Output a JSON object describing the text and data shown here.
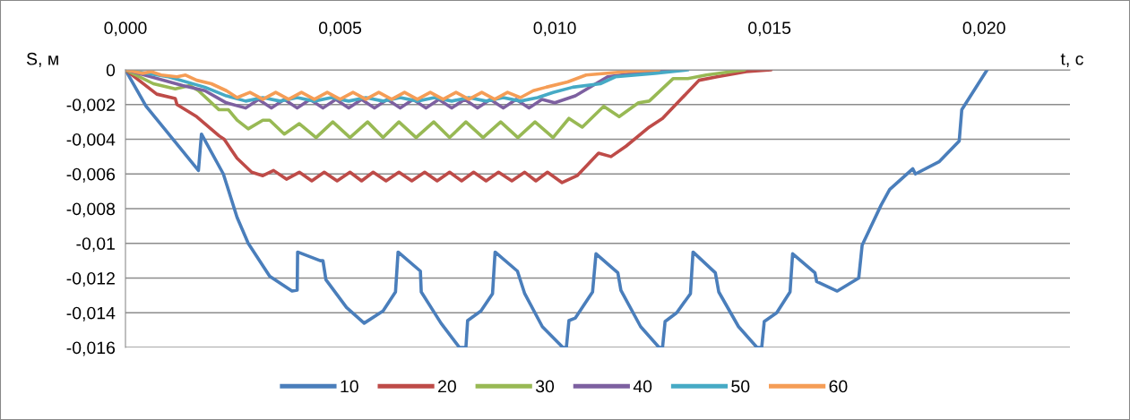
{
  "chart_data": {
    "type": "line",
    "xlabel": "t, c",
    "ylabel": "S, м",
    "xlim": [
      0,
      0.022
    ],
    "ylim": [
      -0.016,
      0
    ],
    "xticks": [
      {
        "value": 0,
        "label": "0,000"
      },
      {
        "value": 0.005,
        "label": "0,005"
      },
      {
        "value": 0.01,
        "label": "0,010"
      },
      {
        "value": 0.015,
        "label": "0,015"
      },
      {
        "value": 0.02,
        "label": "0,020"
      }
    ],
    "yticks": [
      {
        "value": 0,
        "label": "0"
      },
      {
        "value": -0.002,
        "label": "-0,002"
      },
      {
        "value": -0.004,
        "label": "-0,004"
      },
      {
        "value": -0.006,
        "label": "-0,006"
      },
      {
        "value": -0.008,
        "label": "-0,008"
      },
      {
        "value": -0.01,
        "label": "-0,01"
      },
      {
        "value": -0.012,
        "label": "-0,012"
      },
      {
        "value": -0.014,
        "label": "-0,014"
      },
      {
        "value": -0.016,
        "label": "-0,016"
      }
    ],
    "grid": "y",
    "legend": "bottom",
    "marker": "none",
    "line_style": "solid",
    "series": [
      {
        "name": "10",
        "color": "#4a7ebb",
        "x": [
          0,
          0.00048,
          0.00091,
          0.0017,
          0.00177,
          0.00228,
          0.0026,
          0.00286,
          0.00336,
          0.00388,
          0.004,
          0.00401,
          0.00454,
          0.0046,
          0.00467,
          0.00515,
          0.00556,
          0.006,
          0.00629,
          0.00635,
          0.00687,
          0.00689,
          0.00735,
          0.00778,
          0.00793,
          0.00797,
          0.00828,
          0.00855,
          0.00861,
          0.00913,
          0.0093,
          0.00971,
          0.01019,
          0.01027,
          0.01033,
          0.01048,
          0.01088,
          0.01096,
          0.01147,
          0.01154,
          0.012,
          0.01243,
          0.01251,
          0.01257,
          0.01284,
          0.01316,
          0.01322,
          0.01374,
          0.01382,
          0.01428,
          0.01471,
          0.01482,
          0.01488,
          0.01517,
          0.01548,
          0.01554,
          0.01606,
          0.0161,
          0.01658,
          0.01708,
          0.01716,
          0.0176,
          0.0178,
          0.01834,
          0.0184,
          0.01895,
          0.01942,
          0.01948,
          0.02007
        ],
        "values": [
          0,
          -0.0021,
          -0.0034,
          -0.0058,
          -0.0037,
          -0.006,
          -0.0085,
          -0.01,
          -0.0119,
          -0.01275,
          -0.0127,
          -0.0105,
          -0.011,
          -0.011,
          -0.0121,
          -0.0137,
          -0.0146,
          -0.0139,
          -0.0128,
          -0.0105,
          -0.0116,
          -0.0128,
          -0.0146,
          -0.016,
          -0.016,
          -0.01445,
          -0.0139,
          -0.0129,
          -0.0105,
          -0.0116,
          -0.0129,
          -0.0148,
          -0.016,
          -0.016,
          -0.01445,
          -0.0143,
          -0.0128,
          -0.0106,
          -0.0117,
          -0.0127,
          -0.0148,
          -0.016,
          -0.016,
          -0.0145,
          -0.014,
          -0.0129,
          -0.0105,
          -0.0117,
          -0.0128,
          -0.0148,
          -0.016,
          -0.016,
          -0.0145,
          -0.014,
          -0.0128,
          -0.0106,
          -0.0117,
          -0.0122,
          -0.01275,
          -0.012,
          -0.0101,
          -0.0078,
          -0.0069,
          -0.0057,
          -0.006,
          -0.0053,
          -0.0041,
          -0.0023,
          0
        ]
      },
      {
        "name": "20",
        "color": "#be4b48",
        "x": [
          0,
          0.00073,
          0.00116,
          0.0012,
          0.00166,
          0.00218,
          0.0023,
          0.0026,
          0.00294,
          0.0032,
          0.00345,
          0.00375,
          0.00405,
          0.00434,
          0.00463,
          0.00493,
          0.00523,
          0.0055,
          0.00577,
          0.00607,
          0.00637,
          0.00667,
          0.00697,
          0.00726,
          0.00755,
          0.00783,
          0.00811,
          0.0084,
          0.00869,
          0.009,
          0.0093,
          0.00956,
          0.00983,
          0.01017,
          0.01052,
          0.01102,
          0.01131,
          0.01166,
          0.0122,
          0.01251,
          0.01336,
          0.01378,
          0.01446,
          0.01504
        ],
        "values": [
          0,
          -0.0014,
          -0.00165,
          -0.002,
          -0.0027,
          -0.0038,
          -0.004,
          -0.0051,
          -0.0059,
          -0.0061,
          -0.0058,
          -0.0063,
          -0.0059,
          -0.0064,
          -0.0059,
          -0.0064,
          -0.0059,
          -0.0064,
          -0.0059,
          -0.0064,
          -0.0059,
          -0.0064,
          -0.0059,
          -0.0064,
          -0.0059,
          -0.0064,
          -0.0059,
          -0.0064,
          -0.0059,
          -0.0064,
          -0.0059,
          -0.0064,
          -0.0059,
          -0.0065,
          -0.0061,
          -0.0048,
          -0.005,
          -0.0044,
          -0.0033,
          -0.0028,
          -0.0006,
          -0.0004,
          -0.0001,
          0
        ]
      },
      {
        "name": "30",
        "color": "#98b954",
        "x": [
          0,
          0.00065,
          0.00116,
          0.0015,
          0.0017,
          0.00218,
          0.0024,
          0.0026,
          0.00286,
          0.0032,
          0.00336,
          0.0037,
          0.00405,
          0.00444,
          0.00483,
          0.00523,
          0.00564,
          0.006,
          0.00637,
          0.00677,
          0.00718,
          0.00755,
          0.00793,
          0.00833,
          0.00874,
          0.00914,
          0.00954,
          0.00996,
          0.01033,
          0.01064,
          0.01114,
          0.0115,
          0.01195,
          0.0122,
          0.01276,
          0.0131,
          0.01353,
          0.01442
        ],
        "values": [
          0,
          -0.0008,
          -0.0011,
          -0.0009,
          -0.0012,
          -0.0023,
          -0.0023,
          -0.0029,
          -0.0034,
          -0.0029,
          -0.0029,
          -0.0037,
          -0.0031,
          -0.0039,
          -0.003,
          -0.0039,
          -0.003,
          -0.0039,
          -0.003,
          -0.0039,
          -0.003,
          -0.0039,
          -0.003,
          -0.0039,
          -0.003,
          -0.0039,
          -0.003,
          -0.0039,
          -0.0028,
          -0.0033,
          -0.0021,
          -0.0027,
          -0.0019,
          -0.0018,
          -0.0005,
          -0.0005,
          -0.0003,
          0
        ]
      },
      {
        "name": "40",
        "color": "#7d60a0",
        "x": [
          0,
          0.00133,
          0.00185,
          0.00235,
          0.0028,
          0.0031,
          0.0034,
          0.0037,
          0.004,
          0.0043,
          0.0046,
          0.0049,
          0.0052,
          0.0055,
          0.0058,
          0.0061,
          0.0064,
          0.0067,
          0.007,
          0.0073,
          0.0076,
          0.0079,
          0.0082,
          0.0085,
          0.0088,
          0.0091,
          0.0094,
          0.0097,
          0.01,
          0.01048,
          0.01123,
          0.0125,
          0.0128
        ],
        "values": [
          0,
          -0.0009,
          -0.0012,
          -0.0019,
          -0.0022,
          -0.0017,
          -0.0022,
          -0.0017,
          -0.0022,
          -0.0017,
          -0.0022,
          -0.0017,
          -0.0022,
          -0.0017,
          -0.0022,
          -0.0017,
          -0.0022,
          -0.0017,
          -0.0022,
          -0.0017,
          -0.0022,
          -0.0017,
          -0.0022,
          -0.0017,
          -0.0022,
          -0.0017,
          -0.0022,
          -0.0017,
          -0.0019,
          -0.0015,
          -0.0004,
          0,
          0
        ]
      },
      {
        "name": "50",
        "color": "#46aac5",
        "x": [
          0,
          0.001,
          0.00185,
          0.00235,
          0.0028,
          0.0032,
          0.0036,
          0.004,
          0.0044,
          0.0048,
          0.0052,
          0.0056,
          0.006,
          0.0064,
          0.0068,
          0.0072,
          0.0076,
          0.008,
          0.0084,
          0.0088,
          0.0092,
          0.0096,
          0.00996,
          0.01042,
          0.01106,
          0.01141,
          0.01233,
          0.0131
        ],
        "values": [
          0,
          -0.0004,
          -0.001,
          -0.0015,
          -0.0018,
          -0.0016,
          -0.0018,
          -0.0016,
          -0.0018,
          -0.0016,
          -0.0018,
          -0.0016,
          -0.0018,
          -0.0016,
          -0.0018,
          -0.0016,
          -0.0018,
          -0.0016,
          -0.0018,
          -0.0016,
          -0.0018,
          -0.0016,
          -0.0013,
          -0.001,
          -0.0008,
          -0.0004,
          -0.0002,
          0
        ]
      },
      {
        "name": "60",
        "color": "#f59d56",
        "x": [
          0,
          0.0004,
          0.0006,
          0.00083,
          0.0012,
          0.0014,
          0.00166,
          0.002,
          0.00235,
          0.0026,
          0.0029,
          0.0032,
          0.0035,
          0.0038,
          0.0041,
          0.0044,
          0.0047,
          0.005,
          0.0053,
          0.0056,
          0.0059,
          0.0062,
          0.0065,
          0.0068,
          0.0071,
          0.0074,
          0.0077,
          0.008,
          0.0083,
          0.0086,
          0.0089,
          0.0092,
          0.0095,
          0.0098,
          0.0103,
          0.01073,
          0.01166,
          0.01243
        ],
        "values": [
          0,
          -0.0002,
          -0.0001,
          -0.0003,
          -0.0004,
          -0.0003,
          -0.0006,
          -0.0008,
          -0.0012,
          -0.0016,
          -0.0013,
          -0.0017,
          -0.0013,
          -0.0017,
          -0.0013,
          -0.0017,
          -0.0013,
          -0.0017,
          -0.0013,
          -0.0017,
          -0.0013,
          -0.0017,
          -0.0013,
          -0.0017,
          -0.0013,
          -0.0017,
          -0.0013,
          -0.0017,
          -0.0013,
          -0.0017,
          -0.0013,
          -0.0016,
          -0.0012,
          -0.001,
          -0.0007,
          -0.0003,
          -0.0001,
          0
        ]
      }
    ]
  }
}
